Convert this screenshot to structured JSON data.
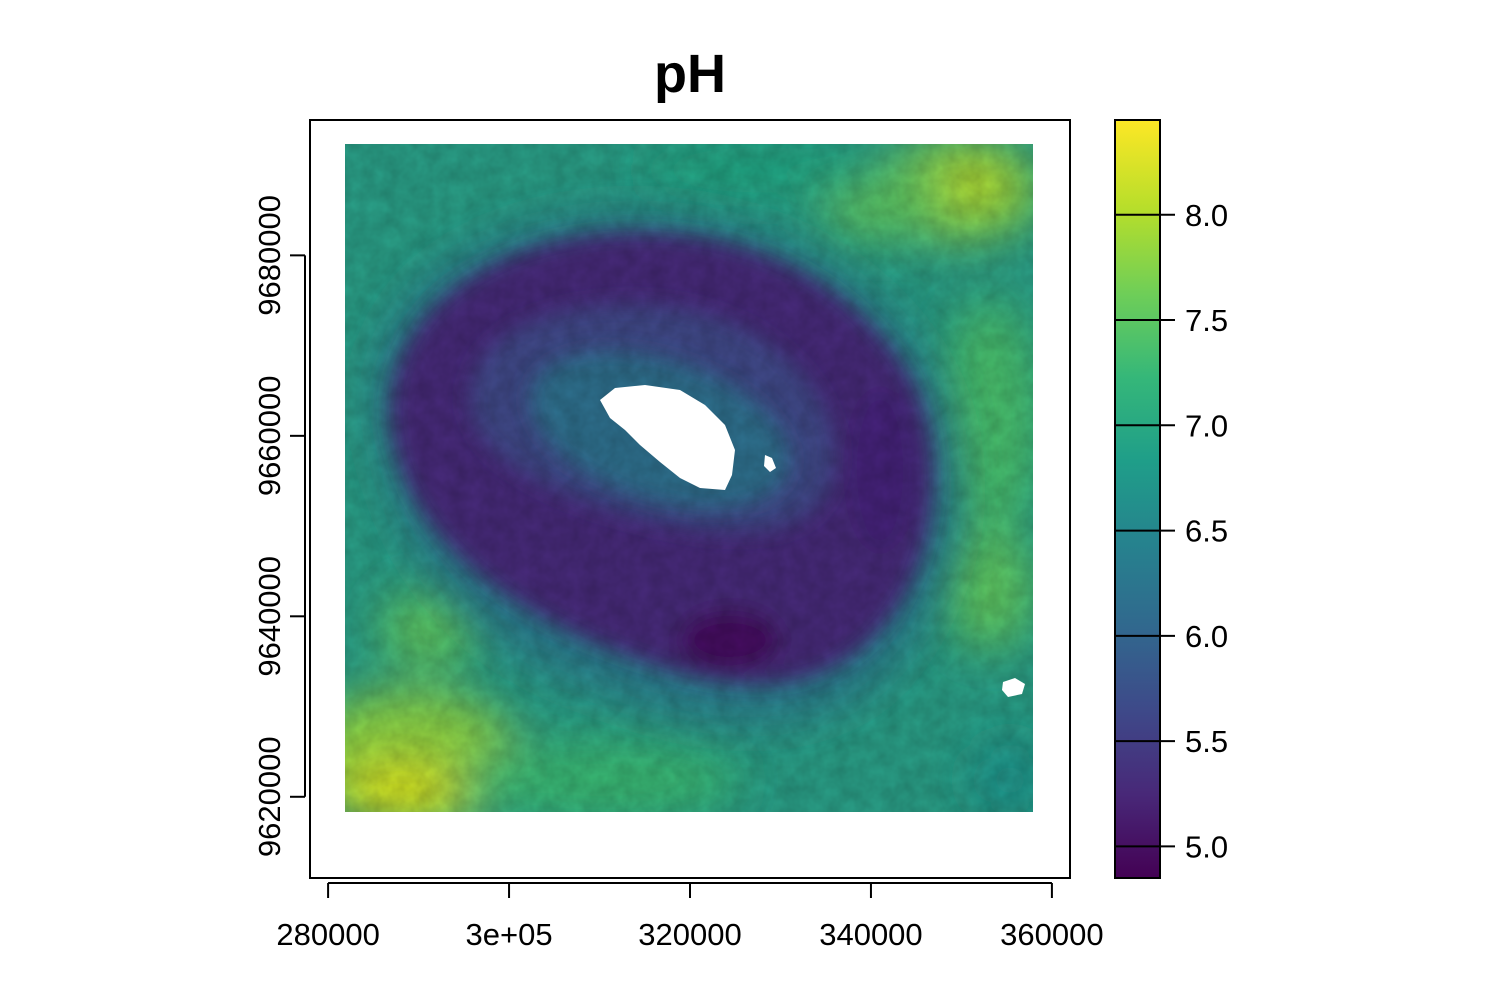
{
  "chart_data": {
    "type": "heatmap",
    "title": "pH",
    "xlabel": "",
    "ylabel": "",
    "xlim": [
      278000,
      362000
    ],
    "ylim": [
      9611000,
      9695000
    ],
    "x_ticks": [
      {
        "value": 280000,
        "label": "280000"
      },
      {
        "value": 300000,
        "label": "3e+05"
      },
      {
        "value": 320000,
        "label": "320000"
      },
      {
        "value": 340000,
        "label": "340000"
      },
      {
        "value": 360000,
        "label": "360000"
      }
    ],
    "y_ticks": [
      {
        "value": 9620000,
        "label": "9620000"
      },
      {
        "value": 9640000,
        "label": "9640000"
      },
      {
        "value": 9660000,
        "label": "9660000"
      },
      {
        "value": 9680000,
        "label": "9680000"
      }
    ],
    "raster_extent": {
      "xmin": 282000,
      "xmax": 358000,
      "ymin": 9619500,
      "ymax": 9693400
    },
    "colorbar": {
      "colormap": "viridis",
      "range": [
        4.85,
        8.45
      ],
      "ticks": [
        {
          "value": 5.0,
          "label": "5.0"
        },
        {
          "value": 5.5,
          "label": "5.5"
        },
        {
          "value": 6.0,
          "label": "6.0"
        },
        {
          "value": 6.5,
          "label": "6.5"
        },
        {
          "value": 7.0,
          "label": "7.0"
        },
        {
          "value": 7.5,
          "label": "7.5"
        },
        {
          "value": 8.0,
          "label": "8.0"
        }
      ]
    },
    "legend": "right",
    "grid": false,
    "description_values": {
      "center_peak_nodata": true,
      "ring_min_pH": 5.0,
      "outer_typical_pH": 6.8,
      "corner_max_pH": 8.2
    }
  }
}
